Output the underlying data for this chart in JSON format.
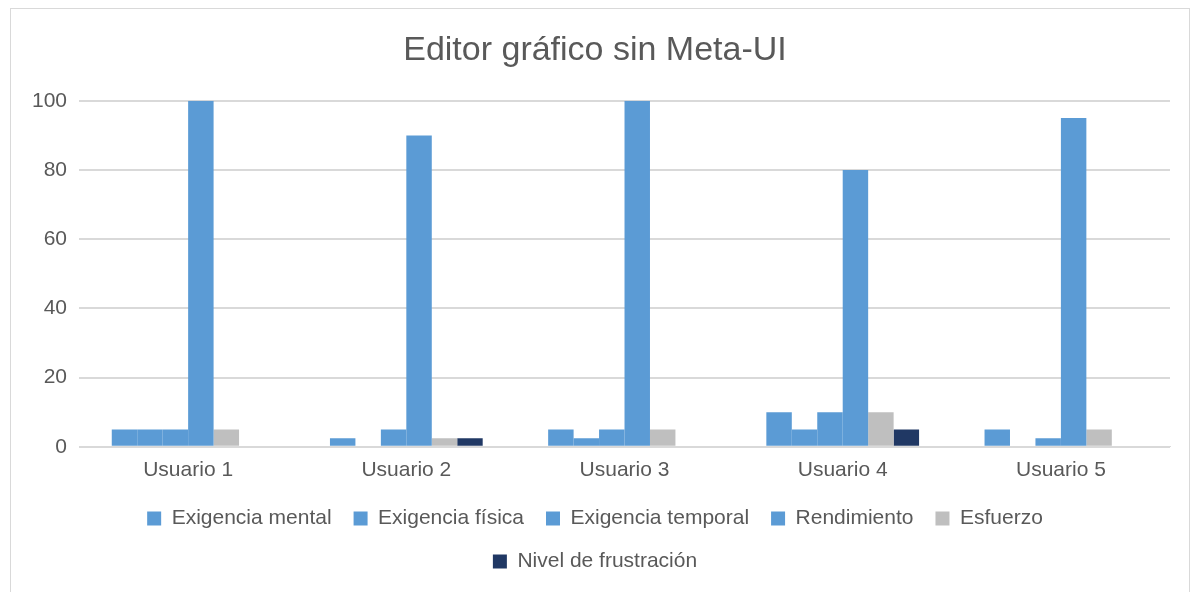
{
  "chart_data": {
    "type": "bar",
    "title": "Editor gráfico sin Meta-UI",
    "categories": [
      "Usuario 1",
      "Usuario 2",
      "Usuario 3",
      "Usuario 4",
      "Usuario 5"
    ],
    "series": [
      {
        "name": "Exigencia mental",
        "color": "#5b9bd5",
        "values": [
          5,
          2.5,
          5,
          10,
          5
        ]
      },
      {
        "name": "Exigencia física",
        "color": "#5b9bd5",
        "values": [
          5,
          0,
          2.5,
          5,
          0
        ]
      },
      {
        "name": "Exigencia temporal",
        "color": "#5b9bd5",
        "values": [
          5,
          5,
          5,
          10,
          2.5
        ]
      },
      {
        "name": "Rendimiento",
        "color": "#5b9bd5",
        "values": [
          100,
          90,
          100,
          80,
          95
        ]
      },
      {
        "name": "Esfuerzo",
        "color": "#bfbfbf",
        "values": [
          5,
          2.5,
          5,
          10,
          5
        ]
      },
      {
        "name": "Nivel de frustración",
        "color": "#203864",
        "values": [
          0,
          2.5,
          0,
          5,
          0
        ]
      }
    ],
    "ylim": [
      0,
      100
    ],
    "yticks": [
      0,
      20,
      40,
      60,
      80,
      100
    ],
    "grid": "y",
    "legend": "bottom"
  }
}
